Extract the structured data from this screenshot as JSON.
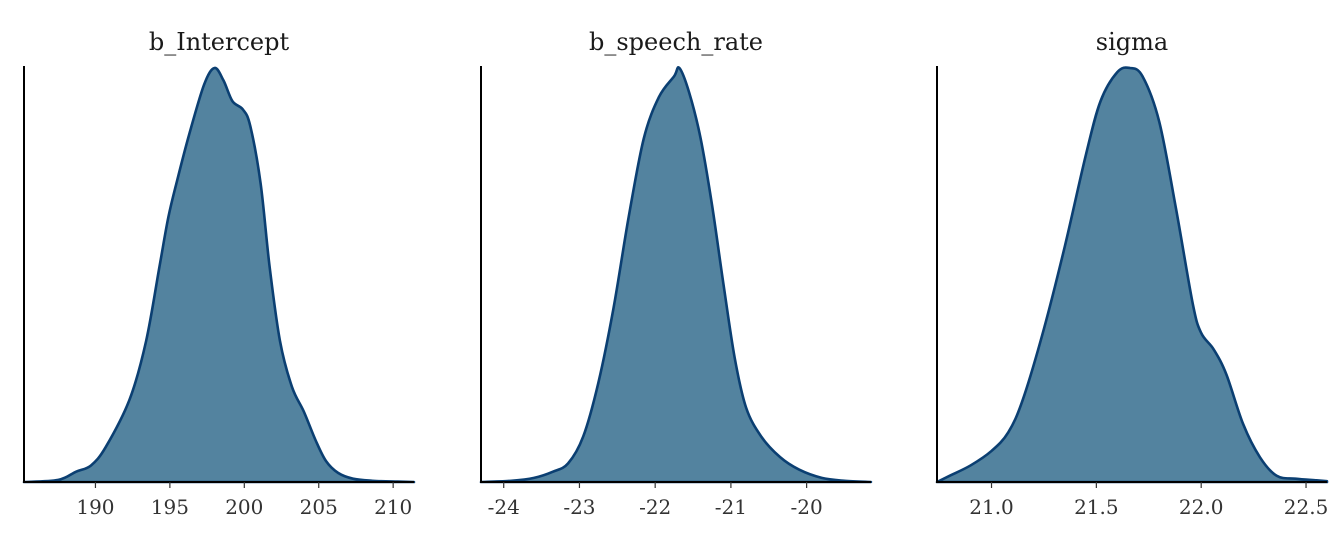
{
  "chart_data": [
    {
      "type": "area",
      "title": "b_Intercept",
      "xlim": [
        185.2,
        211.4
      ],
      "ticks": [
        190,
        195,
        200,
        205,
        210
      ],
      "tick_labels": [
        "190",
        "195",
        "200",
        "205",
        "210"
      ],
      "x": [
        185.2,
        187.5,
        188.7,
        189.7,
        190.7,
        192.3,
        193.4,
        194.3,
        194.9,
        195.5,
        196.3,
        197.3,
        198.0,
        198.6,
        199.2,
        199.9,
        200.4,
        201.1,
        201.7,
        202.4,
        203.2,
        204.0,
        204.8,
        205.5,
        206.3,
        207.3,
        208.6,
        210.3,
        211.4
      ],
      "y": [
        0.0,
        0.005,
        0.025,
        0.04,
        0.085,
        0.2,
        0.34,
        0.52,
        0.64,
        0.73,
        0.84,
        0.96,
        1.0,
        0.97,
        0.92,
        0.9,
        0.86,
        0.72,
        0.52,
        0.34,
        0.23,
        0.17,
        0.1,
        0.05,
        0.022,
        0.008,
        0.003,
        0.001,
        0.0
      ],
      "colors": {
        "fill": "#53839F",
        "line": "#0B3F72"
      }
    },
    {
      "type": "area",
      "title": "b_speech_rate",
      "xlim": [
        -24.3,
        -19.15
      ],
      "ticks": [
        -24,
        -23,
        -22,
        -21,
        -20
      ],
      "tick_labels": [
        "-24",
        "-23",
        "-22",
        "-21",
        "-20"
      ],
      "x": [
        -24.3,
        -23.9,
        -23.6,
        -23.35,
        -23.15,
        -22.95,
        -22.75,
        -22.55,
        -22.35,
        -22.15,
        -21.95,
        -21.75,
        -21.68,
        -21.55,
        -21.4,
        -21.25,
        -21.1,
        -20.95,
        -20.8,
        -20.6,
        -20.35,
        -20.1,
        -19.8,
        -19.5,
        -19.15
      ],
      "y": [
        0.0,
        0.003,
        0.01,
        0.025,
        0.045,
        0.11,
        0.24,
        0.42,
        0.64,
        0.83,
        0.93,
        0.98,
        1.0,
        0.94,
        0.83,
        0.67,
        0.48,
        0.3,
        0.18,
        0.11,
        0.06,
        0.03,
        0.01,
        0.003,
        0.0
      ],
      "colors": {
        "fill": "#53839F",
        "line": "#0B3F72"
      }
    },
    {
      "type": "area",
      "title": "sigma",
      "xlim": [
        20.74,
        22.6
      ],
      "ticks": [
        21.0,
        21.5,
        22.0,
        22.5
      ],
      "tick_labels": [
        "21.0",
        "21.5",
        "22.0",
        "22.5"
      ],
      "x": [
        20.74,
        20.8,
        20.9,
        21.0,
        21.08,
        21.15,
        21.25,
        21.35,
        21.45,
        21.52,
        21.6,
        21.66,
        21.72,
        21.8,
        21.88,
        21.96,
        22.0,
        22.06,
        22.12,
        22.2,
        22.28,
        22.36,
        22.45,
        22.55,
        22.6
      ],
      "y": [
        0.0,
        0.015,
        0.04,
        0.075,
        0.12,
        0.2,
        0.37,
        0.57,
        0.79,
        0.92,
        0.99,
        1.0,
        0.98,
        0.87,
        0.66,
        0.43,
        0.36,
        0.32,
        0.26,
        0.14,
        0.06,
        0.015,
        0.008,
        0.004,
        0.002
      ],
      "colors": {
        "fill": "#53839F",
        "line": "#0B3F72"
      }
    }
  ]
}
